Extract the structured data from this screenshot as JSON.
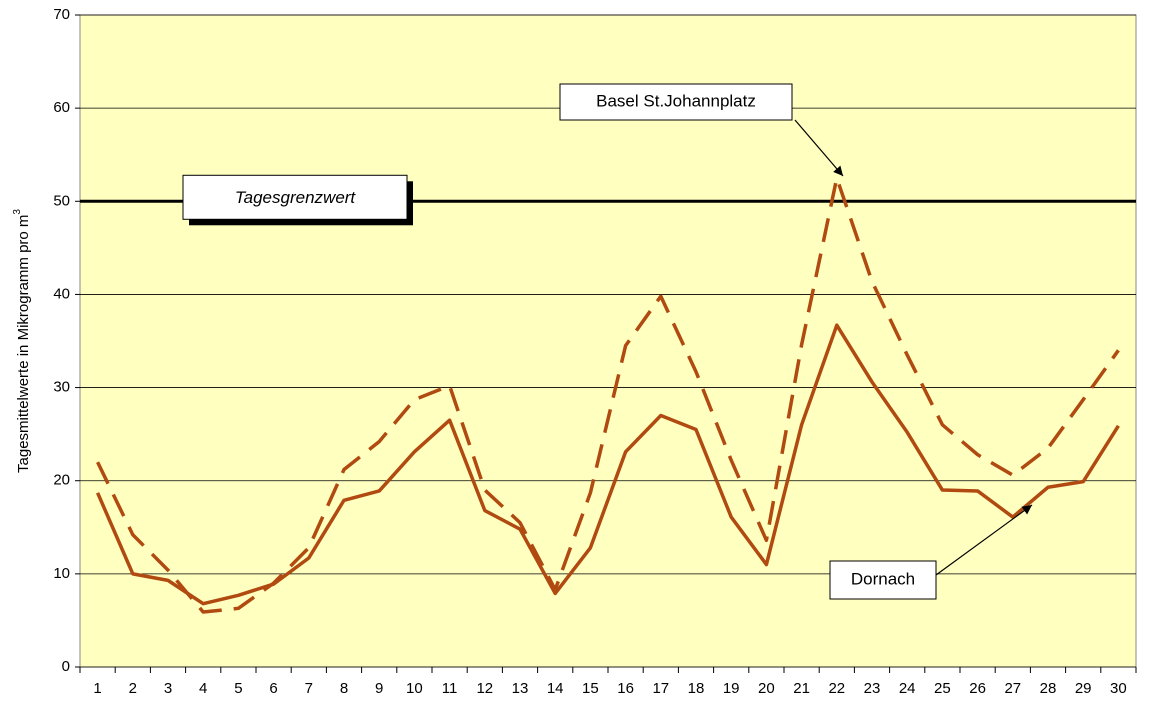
{
  "chart_data": {
    "type": "line",
    "y_label": "Tagesmittelwerte in Mikrogramm pro m",
    "y_label_sup": "3",
    "categories": [
      "1",
      "2",
      "3",
      "4",
      "5",
      "6",
      "7",
      "8",
      "9",
      "10",
      "11",
      "12",
      "13",
      "14",
      "15",
      "16",
      "17",
      "18",
      "19",
      "20",
      "21",
      "22",
      "23",
      "24",
      "25",
      "26",
      "27",
      "28",
      "29",
      "30"
    ],
    "series": [
      {
        "name": "Basel St.Johannplatz",
        "color": "#b04a10",
        "dashed": true,
        "values": [
          22.0,
          14.2,
          10.4,
          5.9,
          6.3,
          9.0,
          12.8,
          21.2,
          24.2,
          28.7,
          30.2,
          19.0,
          15.5,
          8.3,
          18.7,
          34.5,
          39.8,
          31.7,
          22.2,
          13.6,
          34.6,
          52.5,
          41.4,
          33.5,
          26.0,
          22.8,
          20.6,
          23.5,
          28.7,
          34.0
        ]
      },
      {
        "name": "Dornach",
        "color": "#b04a10",
        "dashed": false,
        "values": [
          18.7,
          10.0,
          9.3,
          6.8,
          7.7,
          8.9,
          11.7,
          17.9,
          18.9,
          23.1,
          26.5,
          16.8,
          14.8,
          7.9,
          12.8,
          23.1,
          27.0,
          25.5,
          16.1,
          11.0,
          26.0,
          36.7,
          30.6,
          25.2,
          19.0,
          18.9,
          16.1,
          19.3,
          19.9,
          25.9
        ]
      }
    ],
    "reference_line": {
      "value": 50,
      "label": "Tagesgrenzwert"
    },
    "ylim": [
      0,
      70
    ],
    "yticks": [
      0,
      10,
      20,
      30,
      40,
      50,
      60,
      70
    ],
    "grid": true,
    "plot_background": "#ffffc0"
  }
}
